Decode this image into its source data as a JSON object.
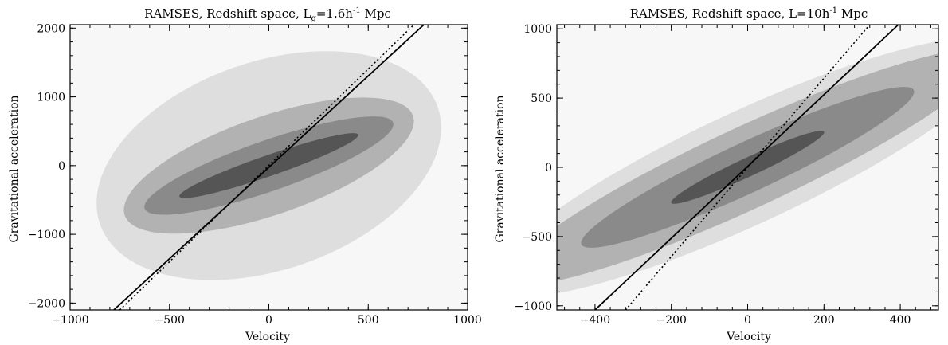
{
  "chart_data": [
    {
      "type": "scatter",
      "title": "RAMSES, Redshift space, L",
      "title_subscript": "g",
      "title_rest": "=1.6h",
      "title_sup": "-1",
      "title_unit": " Mpc",
      "xlabel": "Velocity",
      "ylabel": "Gravitational acceleration",
      "xlim": [
        -1000,
        1000
      ],
      "ylim": [
        -2100,
        2050
      ],
      "x_ticks": [
        -1000,
        -500,
        0,
        500,
        1000
      ],
      "y_ticks": [
        -2000,
        -1000,
        0,
        1000,
        2000
      ],
      "x_tick_labels": [
        "−1000",
        "−500",
        "0",
        "500",
        "1000"
      ],
      "y_tick_labels": [
        "−2000",
        "−1000",
        "0",
        "1000",
        "2000"
      ],
      "density_levels": [
        {
          "level": 1,
          "color": "#dedede",
          "center": [
            0,
            0
          ],
          "angle_deg": 45,
          "spread_along": 1700,
          "spread_across": 700
        },
        {
          "level": 2,
          "color": "#b2b2b2",
          "center": [
            0,
            0
          ],
          "angle_deg": 45,
          "spread_along": 1450,
          "spread_across": 330
        },
        {
          "level": 3,
          "color": "#8a8a8a",
          "center": [
            0,
            0
          ],
          "angle_deg": 45,
          "spread_along": 1250,
          "spread_across": 170
        },
        {
          "level": 4,
          "color": "#555555",
          "center": [
            0,
            0
          ],
          "angle_deg": 45,
          "spread_along": 900,
          "spread_across": 70
        }
      ],
      "lines": [
        {
          "style": "solid",
          "points": [
            [
              -780,
              -2100
            ],
            [
              780,
              2050
            ]
          ]
        },
        {
          "style": "dotted",
          "points": [
            [
              -750,
              -2100
            ],
            [
              730,
              2050
            ]
          ]
        }
      ],
      "grid": false
    },
    {
      "type": "scatter",
      "title": "RAMSES, Redshift space, L=10h",
      "title_sup": "-1",
      "title_unit": " Mpc",
      "xlabel": "Velocity",
      "ylabel": "Gravitational acceleration",
      "xlim": [
        -500,
        500
      ],
      "ylim": [
        -1030,
        1030
      ],
      "x_ticks": [
        -400,
        -200,
        0,
        200,
        400
      ],
      "y_ticks": [
        -1000,
        -500,
        0,
        500,
        1000
      ],
      "x_tick_labels": [
        "−400",
        "−200",
        "0",
        "200",
        "400"
      ],
      "y_tick_labels": [
        "−1000",
        "−500",
        "0",
        "500",
        "1000"
      ],
      "density_levels": [
        {
          "level": 1,
          "color": "#dedede",
          "center": [
            0,
            0
          ],
          "angle_deg": 52,
          "spread_along": 1550,
          "spread_across": 180
        },
        {
          "level": 2,
          "color": "#b2b2b2",
          "center": [
            0,
            0
          ],
          "angle_deg": 52,
          "spread_along": 1450,
          "spread_across": 130
        },
        {
          "level": 3,
          "color": "#8a8a8a",
          "center": [
            0,
            0
          ],
          "angle_deg": 52,
          "spread_along": 1000,
          "spread_across": 80
        },
        {
          "level": 4,
          "color": "#555555",
          "center": [
            0,
            0
          ],
          "angle_deg": 52,
          "spread_along": 460,
          "spread_across": 30
        }
      ],
      "lines": [
        {
          "style": "solid",
          "points": [
            [
              -400,
              -1030
            ],
            [
              395,
              1030
            ]
          ]
        },
        {
          "style": "dotted",
          "points": [
            [
              -320,
              -1030
            ],
            [
              320,
              1030
            ]
          ]
        }
      ],
      "grid": false
    }
  ]
}
